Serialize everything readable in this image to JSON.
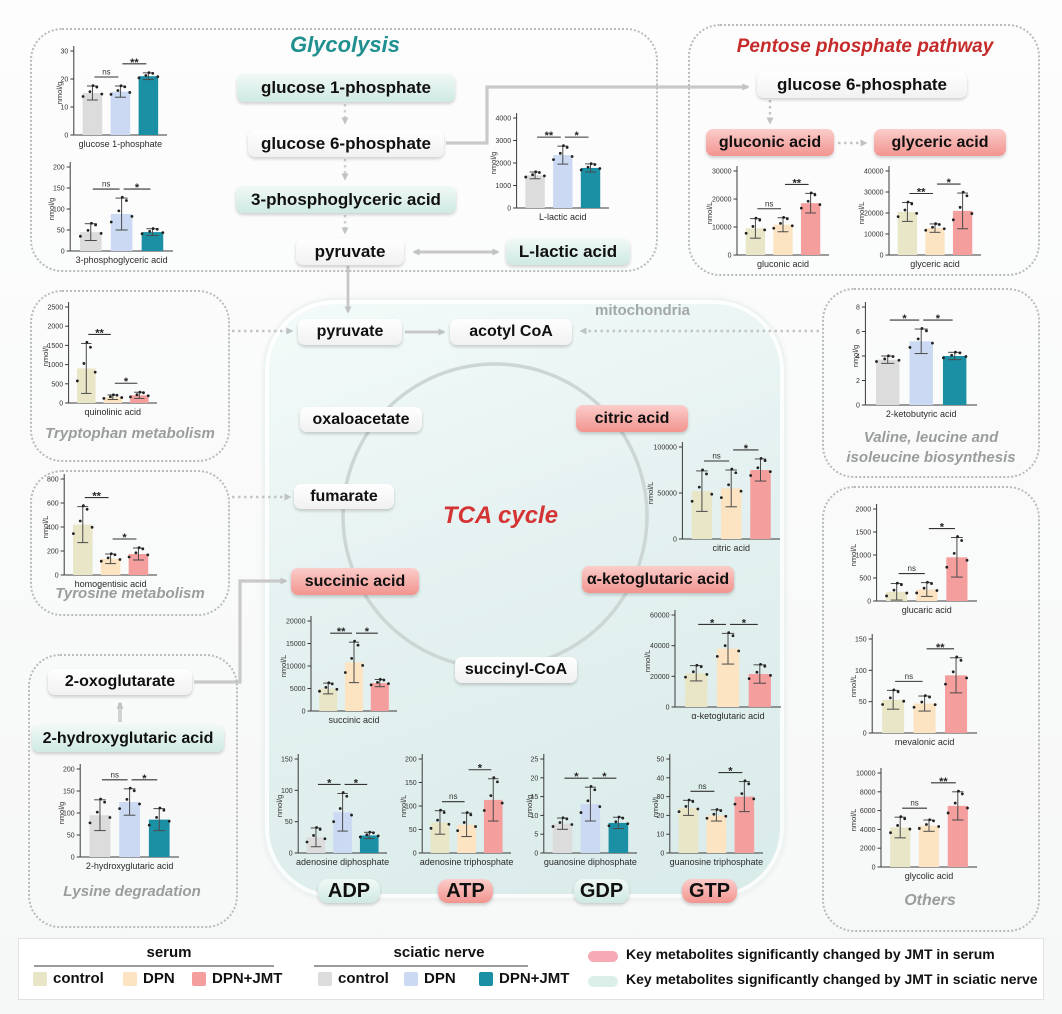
{
  "titles": {
    "glycolysis": "Glycolysis",
    "ppp": "Pentose phosphate pathway",
    "tca": "TCA cycle",
    "mitochondria": "mitochondria"
  },
  "sections": {
    "tryptophan": "Tryptophan metabolism",
    "tyrosine": "Tyrosine metabolism",
    "lysine": "Lysine degradation",
    "valine": "Valine, leucine and\nisoleucine biosynthesis",
    "others": "Others"
  },
  "nodes": {
    "g1p": "glucose 1-phosphate",
    "g6p_gly": "glucose 6-phosphate",
    "pga3": "3-phosphoglyceric acid",
    "pyruvate_gly": "pyruvate",
    "llactic": "L-lactic acid",
    "g6p_ppp": "glucose 6-phosphate",
    "gluconic": "gluconic acid",
    "glyceric": "glyceric acid",
    "pyruvate_mito": "pyruvate",
    "acotyl": "acotyl CoA",
    "oxaloacetate": "oxaloacetate",
    "citric": "citric acid",
    "fumarate": "fumarate",
    "succinic": "succinic acid",
    "aketoglutaric": "α-ketoglutaric acid",
    "succinylcoa": "succinyl-CoA",
    "oxoglutarate": "2-oxoglutarate",
    "hydroxyglutaric": "2-hydroxyglutaric acid",
    "adp": "ADP",
    "atp": "ATP",
    "gdp": "GDP",
    "gtp": "GTP"
  },
  "colors": {
    "groups": {
      "serum": [
        "#e8e6c6",
        "#fce4c2",
        "#f59e9e"
      ],
      "nerve": [
        "#dcdcdc",
        "#cbdaf2",
        "#1b8fa3"
      ]
    },
    "glycolysis_title": "#1f8f8f",
    "ppp_title": "#c62b2b",
    "tca_title": "#d43434"
  },
  "charts": {
    "g1p_chart": {
      "label": "glucose 1-phosphate",
      "unit": "nmol/g",
      "group": "nerve",
      "yticks": [
        0,
        10,
        20,
        30
      ],
      "values": [
        15,
        15.5,
        21
      ],
      "errors": [
        2.5,
        2,
        1.2
      ],
      "sig": [
        "ns",
        "**"
      ]
    },
    "pga3_chart": {
      "label": "3-phosphoglyceric acid",
      "unit": "nmol/g",
      "group": "nerve",
      "yticks": [
        0,
        50,
        100,
        150,
        200
      ],
      "values": [
        45,
        88,
        45
      ],
      "errors": [
        20,
        38,
        8
      ],
      "sig": [
        "ns",
        "*"
      ]
    },
    "llactic_chart": {
      "label": "L-lactic acid",
      "unit": "nmol/g",
      "group": "nerve",
      "yticks": [
        0,
        1000,
        2000,
        3000,
        4000
      ],
      "values": [
        1450,
        2350,
        1780
      ],
      "errors": [
        150,
        400,
        180
      ],
      "sig": [
        "**",
        "*"
      ]
    },
    "gluconic_chart": {
      "label": "gluconic acid",
      "unit": "nmol/L",
      "group": "serum",
      "yticks": [
        0,
        10000,
        20000,
        30000
      ],
      "values": [
        9500,
        10800,
        18500
      ],
      "errors": [
        3500,
        2500,
        3500
      ],
      "sig": [
        "ns",
        "**"
      ]
    },
    "glyceric_chart": {
      "label": "glyceric acid",
      "unit": "nmol/L",
      "group": "serum",
      "yticks": [
        0,
        10000,
        20000,
        30000,
        40000
      ],
      "values": [
        20500,
        12800,
        21000
      ],
      "errors": [
        4500,
        2000,
        8500
      ],
      "sig": [
        "**",
        "*"
      ]
    },
    "quinolinic_chart": {
      "label": "quinolinic acid",
      "unit": "nmol/L",
      "group": "serum",
      "yticks": [
        0,
        500,
        1000,
        1500,
        2000,
        2500
      ],
      "values": [
        900,
        150,
        200
      ],
      "errors": [
        650,
        60,
        80
      ],
      "sig": [
        "**",
        "*"
      ]
    },
    "homogentisic_chart": {
      "label": "homogentisic acid",
      "unit": "nmol/L",
      "group": "serum",
      "yticks": [
        0,
        200,
        400,
        600,
        800
      ],
      "values": [
        420,
        135,
        175
      ],
      "errors": [
        150,
        40,
        50
      ],
      "sig": [
        "**",
        "*"
      ]
    },
    "hydroxyglutaric_chart": {
      "label": "2-hydroxyglutaric acid",
      "unit": "nmol/g",
      "group": "nerve",
      "yticks": [
        0,
        50,
        100,
        150,
        200
      ],
      "values": [
        95,
        125,
        85
      ],
      "errors": [
        35,
        30,
        25
      ],
      "sig": [
        "ns",
        "*"
      ]
    },
    "citric_chart": {
      "label": "citric acid",
      "unit": "nmol/L",
      "group": "serum",
      "yticks": [
        0,
        50000,
        100000
      ],
      "values": [
        52000,
        55000,
        75000
      ],
      "errors": [
        22000,
        20000,
        12000
      ],
      "sig": [
        "ns",
        "*"
      ]
    },
    "aketoglutaric_chart": {
      "label": "α-ketoglutaric acid",
      "unit": "nmol/L",
      "group": "serum",
      "yticks": [
        0,
        20000,
        40000,
        60000
      ],
      "values": [
        22000,
        38000,
        21500
      ],
      "errors": [
        5000,
        10000,
        6000
      ],
      "sig": [
        "*",
        "*"
      ]
    },
    "succinic_chart": {
      "label": "succinic acid",
      "unit": "nmol/L",
      "group": "serum",
      "yticks": [
        0,
        5000,
        10000,
        15000,
        20000
      ],
      "values": [
        5000,
        10800,
        6200
      ],
      "errors": [
        1200,
        4500,
        800
      ],
      "sig": [
        "**",
        "*"
      ]
    },
    "adp_chart": {
      "label": "adenosine diphosphate",
      "unit": "nmol/g",
      "group": "nerve",
      "yticks": [
        0,
        50,
        100,
        150
      ],
      "values": [
        25,
        65,
        28
      ],
      "errors": [
        15,
        30,
        5
      ],
      "sig": [
        "*",
        "*"
      ]
    },
    "atp_chart": {
      "label": "adenosine triphosphate",
      "unit": "nmol/L",
      "group": "serum",
      "yticks": [
        0,
        50,
        100,
        150,
        200
      ],
      "values": [
        65,
        60,
        113
      ],
      "errors": [
        25,
        25,
        45
      ],
      "sig": [
        "ns",
        "*"
      ]
    },
    "gdp_chart": {
      "label": "guanosine diphosphate",
      "unit": "nmol/g",
      "group": "nerve",
      "yticks": [
        0,
        5,
        10,
        15,
        20,
        25
      ],
      "values": [
        7.8,
        13,
        8
      ],
      "errors": [
        1.5,
        4.5,
        1.5
      ],
      "sig": [
        "*",
        "*"
      ]
    },
    "gtp_chart": {
      "label": "guanosine triphosphate",
      "unit": "nmol/L",
      "group": "serum",
      "yticks": [
        0,
        10,
        20,
        30,
        40,
        50
      ],
      "values": [
        24,
        20,
        30
      ],
      "errors": [
        4,
        3,
        8
      ],
      "sig": [
        "ns",
        "*"
      ]
    },
    "ketobutyric_chart": {
      "label": "2-ketobutyric acid",
      "unit": "nmol/g",
      "group": "nerve",
      "yticks": [
        0,
        2,
        4,
        6,
        8
      ],
      "values": [
        3.7,
        5.2,
        4
      ],
      "errors": [
        0.3,
        1,
        0.3
      ],
      "sig": [
        "*",
        "*"
      ]
    },
    "glucaric_chart": {
      "label": "glucaric acid",
      "unit": "nmol/L",
      "group": "serum",
      "yticks": [
        0,
        500,
        1000,
        1500,
        2000
      ],
      "values": [
        200,
        250,
        950
      ],
      "errors": [
        180,
        150,
        430
      ],
      "sig": [
        "ns",
        "*"
      ]
    },
    "mevalonic_chart": {
      "label": "mevalonic acid",
      "unit": "nmol/L",
      "group": "serum",
      "yticks": [
        0,
        50,
        100,
        150
      ],
      "values": [
        53,
        47,
        92
      ],
      "errors": [
        15,
        12,
        28
      ],
      "sig": [
        "ns",
        "**"
      ]
    },
    "glycolic_chart": {
      "label": "glycolic acid",
      "unit": "nmol/L",
      "group": "serum",
      "yticks": [
        0,
        2000,
        4000,
        6000,
        8000,
        10000
      ],
      "values": [
        4200,
        4400,
        6500
      ],
      "errors": [
        1100,
        600,
        1500
      ],
      "sig": [
        "ns",
        "**"
      ]
    }
  },
  "legend": {
    "serum_title": "serum",
    "nerve_title": "sciatic nerve",
    "serum_items": [
      {
        "label": "control",
        "color": "#e8e6c6"
      },
      {
        "label": "DPN",
        "color": "#fce4c2"
      },
      {
        "label": "DPN+JMT",
        "color": "#f59e9e"
      }
    ],
    "nerve_items": [
      {
        "label": "control",
        "color": "#dcdcdc"
      },
      {
        "label": "DPN",
        "color": "#cbdaf2"
      },
      {
        "label": "DPN+JMT",
        "color": "#1b8fa3"
      }
    ],
    "key_serum": {
      "text": "Key metabolites significantly changed by JMT in serum",
      "color": "#f6aab4"
    },
    "key_nerve": {
      "text": "Key metabolites significantly changed by JMT in sciatic nerve",
      "color": "#ddefe9"
    }
  }
}
